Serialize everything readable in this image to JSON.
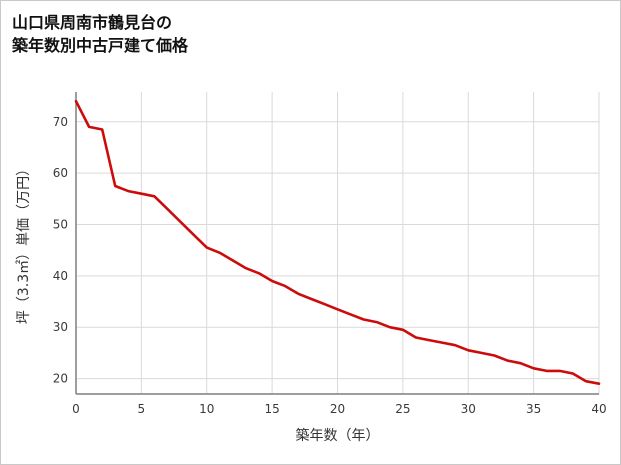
{
  "header": {
    "title_line1": "山口県周南市鶴見台の",
    "title_line2": "築年数別中古戸建て価格"
  },
  "colors": {
    "grid": "#d9d9d9",
    "axis": "#7f7f7f",
    "tick_text": "#3a3a3a",
    "title_text": "#111111",
    "line": "#cc0b0b",
    "background": "#ffffff",
    "border": "#c9c9c9"
  },
  "chart_data": {
    "type": "line",
    "title": "山口県周南市鶴見台の築年数別中古戸建て価格",
    "xlabel": "築年数（年）",
    "ylabel": "坪（3.3㎡）単価（万円）",
    "grid": true,
    "legend": "none",
    "xlim": [
      0,
      40
    ],
    "ylim": [
      17,
      75.8
    ],
    "x_ticks": [
      0,
      5,
      10,
      15,
      20,
      25,
      30,
      35,
      40
    ],
    "y_ticks": [
      20,
      30,
      40,
      50,
      60,
      70
    ],
    "series": [
      {
        "name": "坪単価",
        "x": [
          0,
          1,
          2,
          3,
          4,
          5,
          6,
          7,
          8,
          9,
          10,
          11,
          12,
          13,
          14,
          15,
          16,
          17,
          18,
          19,
          20,
          21,
          22,
          23,
          24,
          25,
          26,
          27,
          28,
          29,
          30,
          31,
          32,
          33,
          34,
          35,
          36,
          37,
          38,
          39,
          40
        ],
        "values": [
          74,
          69,
          68.5,
          57.5,
          56.5,
          56,
          55.5,
          53,
          50.5,
          48,
          45.5,
          44.5,
          43,
          41.5,
          40.5,
          39,
          38,
          36.5,
          35.5,
          34.5,
          33.5,
          32.5,
          31.5,
          31,
          30,
          29.5,
          28,
          27.5,
          27,
          26.5,
          25.5,
          25,
          24.5,
          23.5,
          23,
          22,
          21.5,
          21.5,
          21,
          19.5,
          19
        ]
      }
    ]
  }
}
